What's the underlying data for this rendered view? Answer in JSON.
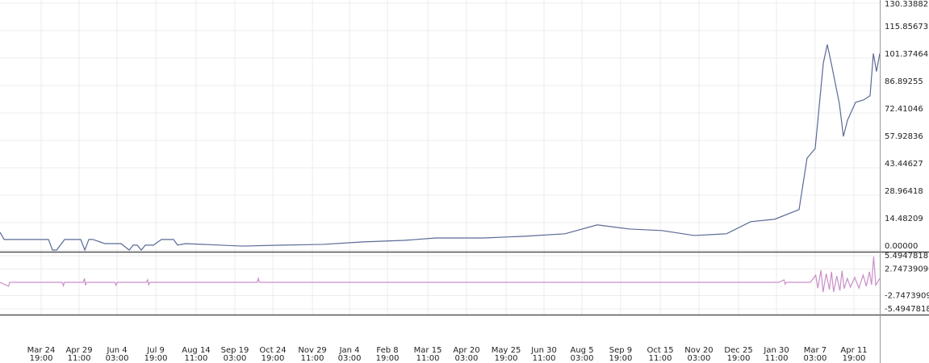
{
  "chart_data": [
    {
      "type": "line",
      "color": "#5b6a96",
      "grid": true,
      "x": [
        -39.1,
        -35.2,
        -31.4,
        6.9,
        10.7,
        14.6,
        22.2,
        37.5,
        41.4,
        45.2,
        49,
        60.5,
        75.8,
        83.5,
        87.3,
        91.1,
        95,
        98.8,
        106.5,
        114.1,
        125.6,
        129.4,
        137.1,
        190.7,
        229,
        267.3,
        305.6,
        343.9,
        374.5,
        420.5,
        458.8,
        497.1,
        527.7,
        558.4,
        589,
        619.6,
        650.3,
        673.3,
        696.2,
        719.2,
        726.8,
        734.5,
        742.2,
        746,
        749.8,
        757.5,
        761.3,
        765.2,
        772.8,
        780.5,
        786.6,
        789.7,
        792.7,
        795.8
      ],
      "values": [
        9.4,
        5.6,
        5.6,
        5.6,
        0,
        0,
        5.6,
        5.6,
        0,
        5.6,
        5.6,
        3.4,
        3.4,
        0,
        2.6,
        2.6,
        0,
        2.6,
        2.6,
        5.6,
        5.6,
        2.6,
        3.4,
        2.1,
        2.6,
        3,
        4.3,
        5.1,
        6.4,
        6.4,
        7.3,
        8.6,
        13.3,
        11.1,
        10.3,
        7.7,
        8.6,
        15,
        16.3,
        21.4,
        48.5,
        53.6,
        98.6,
        108.5,
        98.6,
        77.2,
        60,
        68.6,
        78,
        79.3,
        81.5,
        103.8,
        94.3,
        103.8
      ],
      "xlim": [
        -39.1,
        795.8
      ],
      "ylim": [
        0,
        130.33882
      ],
      "yticks": [
        {
          "value": 0,
          "label": "0.00000"
        },
        {
          "value": 14.48209,
          "label": "14.48209"
        },
        {
          "value": 28.96418,
          "label": "28.96418"
        },
        {
          "value": 43.44627,
          "label": "43.44627"
        },
        {
          "value": 57.92836,
          "label": "57.92836"
        },
        {
          "value": 72.41046,
          "label": "72.41046"
        },
        {
          "value": 86.89255,
          "label": "86.89255"
        },
        {
          "value": 101.37464,
          "label": "101.37464"
        },
        {
          "value": 115.85673,
          "label": "115.85673"
        },
        {
          "value": 130.33882,
          "label": "130.33882"
        }
      ],
      "xticks": [
        {
          "value": 0,
          "label": "Mar 24 19:00"
        },
        {
          "value": 36,
          "label": "Apr 29 11:00"
        },
        {
          "value": 72,
          "label": "Jun 4 03:00"
        },
        {
          "value": 108.8,
          "label": "Jul 9 19:00"
        },
        {
          "value": 147,
          "label": "Aug 14 11:00"
        },
        {
          "value": 183.8,
          "label": "Sep 19 03:00"
        },
        {
          "value": 219.8,
          "label": "Oct 24 19:00"
        },
        {
          "value": 257.4,
          "label": "Nov 29 11:00"
        },
        {
          "value": 292.6,
          "label": "Jan 4 03:00"
        },
        {
          "value": 328.6,
          "label": "Feb 8 19:00"
        },
        {
          "value": 366.9,
          "label": "Mar 15 11:00"
        },
        {
          "value": 403.6,
          "label": "Apr 20 03:00"
        },
        {
          "value": 441.2,
          "label": "May 25 19:00"
        },
        {
          "value": 477.2,
          "label": "Jun 30 11:00"
        },
        {
          "value": 513.2,
          "label": "Aug 5 03:00"
        },
        {
          "value": 549.9,
          "label": "Sep 9 19:00"
        },
        {
          "value": 587.5,
          "label": "Oct 15 11:00"
        },
        {
          "value": 624.2,
          "label": "Nov 20 03:00"
        },
        {
          "value": 661.8,
          "label": "Dec 25 19:00"
        },
        {
          "value": 697.8,
          "label": "Jan 30 11:00"
        },
        {
          "value": 734.5,
          "label": "Mar 7 03:00"
        },
        {
          "value": 771.3,
          "label": "Apr 11 19:00"
        }
      ]
    },
    {
      "type": "line",
      "color": "#c98fc9",
      "grid": true,
      "x": [
        -39,
        -31,
        -30,
        20,
        21,
        22,
        40,
        41,
        42,
        43,
        70,
        71,
        72,
        100,
        101,
        102,
        103,
        205,
        206,
        207,
        400,
        700,
        705,
        706,
        707,
        730,
        735,
        737,
        740,
        742,
        745,
        748,
        750,
        752,
        755,
        758,
        760,
        762,
        765,
        768,
        772,
        776,
        780,
        783,
        786,
        788,
        790,
        792,
        795.8
      ],
      "values": [
        0,
        -0.8,
        0,
        0,
        -0.7,
        0,
        0,
        0.8,
        -0.6,
        0,
        0,
        -0.6,
        0,
        0,
        0.5,
        -0.5,
        0,
        0,
        0.8,
        0,
        0,
        0,
        0.5,
        -0.4,
        0,
        0,
        1.5,
        -1.2,
        2.5,
        -2,
        1.8,
        -1.5,
        2.2,
        -2,
        1.3,
        -1.7,
        2.4,
        -1.3,
        0.8,
        -1,
        1,
        -1.2,
        1.5,
        -0.8,
        2.2,
        -0.5,
        5.3,
        -0.6,
        0.8
      ],
      "xlim": [
        -39.1,
        795.8
      ],
      "ylim": [
        -5.4947818,
        5.49478181
      ],
      "yticks": [
        {
          "value": 5.49478181,
          "label": "5.49478181"
        },
        {
          "value": 2.7473909,
          "label": "2.74739090"
        },
        {
          "value": -2.7473909,
          "label": "-2.74739090"
        },
        {
          "value": -5.4947818,
          "label": "-5.4947818"
        }
      ]
    }
  ]
}
